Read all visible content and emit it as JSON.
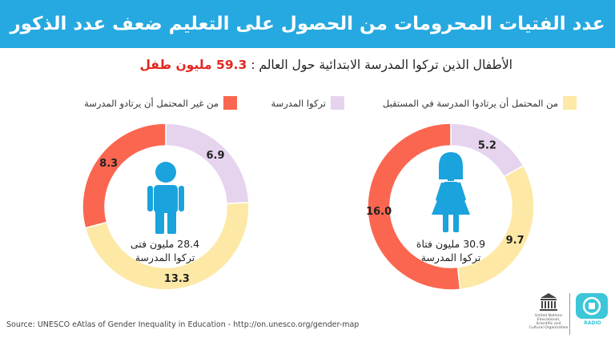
{
  "header": {
    "title": "عدد الفتيات المحرومات من الحصول على التعليم ضعف عدد الذكور"
  },
  "subtitle": {
    "text": "الأطفال الذين تركوا المدرسة الابتدائية حول العالم : ",
    "highlight": "59.3 مليون طفل"
  },
  "legend": [
    {
      "label": "من المحتمل أن يرتادوا المدرسة في المستقبل",
      "color": "#fde9a5"
    },
    {
      "label": "تركوا المدرسة",
      "color": "#e6d4ef"
    },
    {
      "label": "من غير المحتمل أن يرتادو المدرسة",
      "color": "#fb6650"
    }
  ],
  "chart_data": [
    {
      "type": "pie",
      "donut": true,
      "center_icon": "girl-icon",
      "center_label_line1": "30.9 مليون فتاة",
      "center_label_line2": "تركوا المدرسة",
      "slices": [
        {
          "category": "تركوا المدرسة",
          "value": 5.2,
          "color": "#e6d4ef",
          "label": "5.2"
        },
        {
          "category": "من المحتمل أن يرتادوا المدرسة في المستقبل",
          "value": 9.7,
          "color": "#fde9a5",
          "label": "9.7"
        },
        {
          "category": "من غير المحتمل أن يرتادو المدرسة",
          "value": 16.0,
          "color": "#fb6650",
          "label": "16.0"
        }
      ]
    },
    {
      "type": "pie",
      "donut": true,
      "center_icon": "boy-icon",
      "center_label_line1": "28.4 مليون فتى",
      "center_label_line2": "تركوا المدرسة",
      "slices": [
        {
          "category": "تركوا المدرسة",
          "value": 6.9,
          "color": "#e6d4ef",
          "label": "6.9"
        },
        {
          "category": "من المحتمل أن يرتادوا المدرسة في المستقبل",
          "value": 13.3,
          "color": "#fde9a5",
          "label": "13.3"
        },
        {
          "category": "من غير المحتمل أن يرتادو المدرسة",
          "value": 8.3,
          "color": "#fb6650",
          "label": "8.3"
        }
      ]
    }
  ],
  "icon_color": "#1aa3dc",
  "footer": {
    "source": "Source: UNESCO eAtlas of Gender Inequality in Education - http://on.unesco.org/gender-map",
    "unesco_text": "United Nations Educational, Scientific and Cultural Organization",
    "radio_text": "RADIO"
  }
}
